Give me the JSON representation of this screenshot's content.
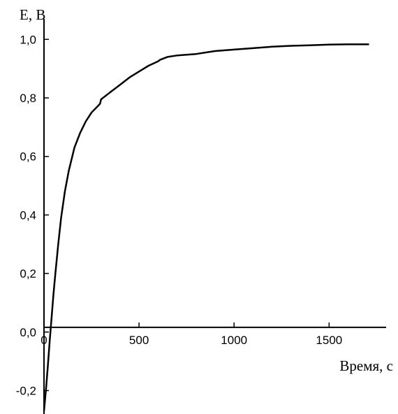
{
  "chart_data": {
    "type": "line",
    "title": "",
    "xlabel": "Время, с",
    "ylabel": "E, В",
    "xlim": [
      0,
      1800
    ],
    "ylim": [
      -0.28,
      1.07
    ],
    "x_ticks": [
      0,
      500,
      1000,
      1500
    ],
    "x_tick_labels": [
      "0",
      "500",
      "1000",
      "1500"
    ],
    "y_ticks": [
      -0.2,
      0.0,
      0.2,
      0.4,
      0.6,
      0.8,
      1.0
    ],
    "y_tick_labels": [
      "-0,2",
      "0,0",
      "0,2",
      "0,4",
      "0,6",
      "0,8",
      "1,0"
    ],
    "x_axis_at_y": 0.016,
    "grid": false,
    "legend": "none",
    "line_color": "#000000",
    "series": [
      {
        "x": [
          0,
          10,
          20,
          30,
          40,
          50,
          60,
          75,
          90,
          110,
          130,
          160,
          190,
          220,
          250,
          280,
          295,
          300,
          330,
          360,
          400,
          450,
          500,
          550,
          600,
          610,
          650,
          700,
          800,
          900,
          1000,
          1100,
          1200,
          1300,
          1400,
          1500,
          1600,
          1710
        ],
        "y": [
          -0.27,
          -0.2,
          -0.12,
          -0.03,
          0.05,
          0.13,
          0.2,
          0.3,
          0.39,
          0.48,
          0.55,
          0.63,
          0.68,
          0.72,
          0.75,
          0.77,
          0.78,
          0.795,
          0.81,
          0.825,
          0.845,
          0.87,
          0.89,
          0.91,
          0.925,
          0.93,
          0.94,
          0.945,
          0.95,
          0.96,
          0.965,
          0.97,
          0.975,
          0.978,
          0.98,
          0.982,
          0.983,
          0.983
        ]
      }
    ]
  }
}
